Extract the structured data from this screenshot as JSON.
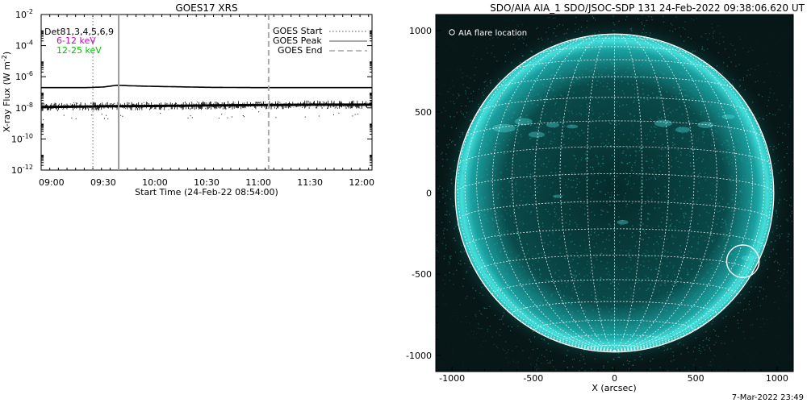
{
  "chart_data": [
    {
      "type": "line",
      "title": "GOES17 XRS",
      "xlabel": "Start Time (24-Feb-22 08:54:00)",
      "ylabel_main": "X-ray Flux (W m",
      "ylabel_sup": "-2",
      "ylabel_end": ")",
      "y_scale": "log",
      "ylim": [
        1e-12,
        0.01
      ],
      "y_ticks": [
        {
          "value": -12,
          "base": "10",
          "exp": "-12"
        },
        {
          "value": -10,
          "base": "10",
          "exp": "-10"
        },
        {
          "value": -8,
          "base": "10",
          "exp": "-8"
        },
        {
          "value": -6,
          "base": "10",
          "exp": "-6"
        },
        {
          "value": -4,
          "base": "10",
          "exp": "-4"
        },
        {
          "value": -2,
          "base": "10",
          "exp": "-2"
        }
      ],
      "xlim": [
        "08:54",
        "12:06"
      ],
      "x_ticks": [
        "09:00",
        "09:30",
        "10:00",
        "10:30",
        "11:00",
        "11:30",
        "12:00"
      ],
      "legend_left": {
        "placement": "top-left",
        "entries": [
          {
            "label": "Det81,3,4,5,6,9",
            "color": "#000000"
          },
          {
            "label": "6-12 keV",
            "color": "#d000d0"
          },
          {
            "label": "12-25 keV",
            "color": "#00c000"
          }
        ]
      },
      "legend_right": {
        "placement": "top-right",
        "entries": [
          {
            "label": "GOES Start",
            "style": "dotted"
          },
          {
            "label": "GOES Peak",
            "style": "solid"
          },
          {
            "label": "GOES End",
            "style": "dashed"
          }
        ]
      },
      "events": {
        "start": "09:24",
        "peak": "09:39",
        "end": "11:06"
      },
      "series": [
        {
          "color": "#000000",
          "x": [
            "08:54",
            "09:20",
            "09:30",
            "09:38",
            "09:45",
            "10:00",
            "10:30",
            "11:00",
            "11:30",
            "12:06"
          ],
          "log_flux": [
            -6.7,
            -6.7,
            -6.66,
            -6.55,
            -6.58,
            -6.62,
            -6.68,
            -6.7,
            -6.7,
            -6.7
          ]
        },
        {
          "color": "#000000",
          "x": [
            "08:54",
            "09:30",
            "10:00",
            "10:30",
            "11:00",
            "11:30",
            "12:06"
          ],
          "log_flux": [
            -7.95,
            -7.9,
            -7.88,
            -7.85,
            -7.82,
            -7.8,
            -7.8
          ]
        }
      ]
    },
    {
      "type": "heatmap",
      "title": "SDO/AIA AIA_1 SDO/JSOC-SDP 131 24-Feb-2022 09:38:06.620 UT",
      "xlabel": "X (arcsec)",
      "xlim": [
        -1100,
        1100
      ],
      "ylim": [
        -1100,
        1100
      ],
      "x_ticks": [
        "-1000",
        "-500",
        "0",
        "500",
        "1000"
      ],
      "y_ticks": [
        "1000",
        "500",
        "0",
        "-500",
        "-1000"
      ],
      "legend_label": "AIA flare location",
      "flare_location": {
        "x": 790,
        "y": -420
      },
      "grid": true,
      "timestamp": "7-Mar-2022 23:49"
    }
  ]
}
